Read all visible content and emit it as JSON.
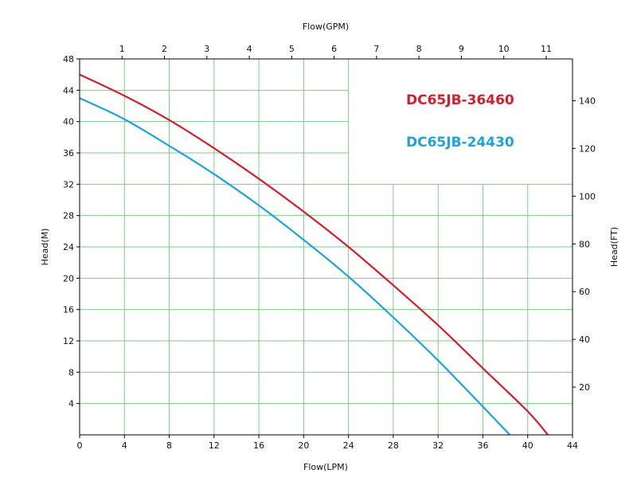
{
  "chart_data": {
    "type": "line",
    "xlabel_bottom": "Flow(LPM)",
    "xlabel_top": "Flow(GPM)",
    "ylabel_left": "Head(M)",
    "ylabel_right": "Head(FT)",
    "xlim": [
      0,
      44
    ],
    "ylim": [
      0,
      48
    ],
    "x_ticks": [
      0,
      4,
      8,
      12,
      16,
      20,
      24,
      28,
      32,
      36,
      40,
      44
    ],
    "y_ticks": [
      4,
      8,
      12,
      16,
      20,
      24,
      28,
      32,
      36,
      40,
      44,
      48
    ],
    "top_ticks": [
      1,
      2,
      3,
      4,
      5,
      6,
      7,
      8,
      9,
      10,
      11
    ],
    "top_xlim": [
      0,
      11.62
    ],
    "right_ticks": [
      20,
      40,
      60,
      80,
      100,
      120,
      140
    ],
    "right_ylim": [
      0,
      157.5
    ],
    "grid": true,
    "grid_color": "#7fc98a",
    "legend_position": "top-right",
    "series": [
      {
        "name": "DC65JB-36460",
        "color": "#d0202e",
        "x": [
          0,
          4,
          8,
          12,
          16,
          20,
          24,
          28,
          32,
          36,
          40,
          41.8
        ],
        "y": [
          46,
          43.3,
          40.2,
          36.6,
          32.7,
          28.5,
          24,
          19.1,
          14,
          8.5,
          3,
          0
        ]
      },
      {
        "name": "DC65JB-24430",
        "color": "#1ea3dd",
        "x": [
          0,
          4,
          8,
          12,
          16,
          20,
          24,
          28,
          32,
          36,
          38.4
        ],
        "y": [
          43,
          40.3,
          36.9,
          33.3,
          29.3,
          24.9,
          20.2,
          15,
          9.5,
          3.6,
          0
        ]
      }
    ]
  }
}
